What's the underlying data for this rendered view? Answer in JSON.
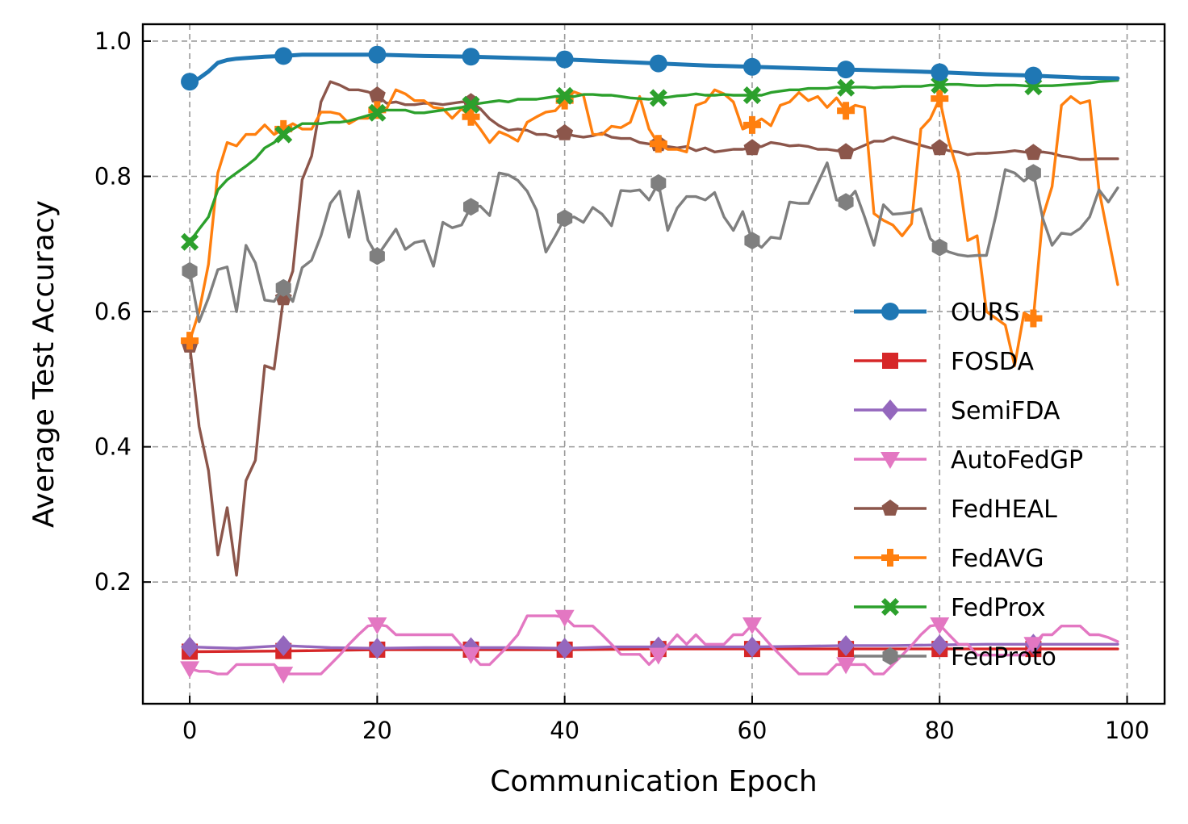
{
  "chart_data": {
    "type": "line",
    "title": "",
    "xlabel": "Communication Epoch",
    "ylabel": "Average Test Accuracy",
    "xlim": [
      -5,
      104
    ],
    "ylim": [
      0.02,
      1.025
    ],
    "xticks": [
      0,
      20,
      40,
      60,
      80,
      100
    ],
    "yticks": [
      0.2,
      0.4,
      0.6,
      0.8,
      1.0
    ],
    "xtick_labels": [
      "0",
      "20",
      "40",
      "60",
      "80",
      "100"
    ],
    "ytick_labels": [
      "0.2",
      "0.4",
      "0.6",
      "0.8",
      "1.0"
    ],
    "grid": true,
    "legend_position": "center-right",
    "series": [
      {
        "name": "OURS",
        "color": "#1f77b4",
        "marker": "circle",
        "x": [
          0,
          1,
          2,
          3,
          4,
          5,
          6,
          8,
          10,
          12,
          15,
          18,
          20,
          25,
          30,
          35,
          40,
          45,
          50,
          55,
          60,
          65,
          70,
          75,
          80,
          85,
          90,
          95,
          99
        ],
        "y": [
          0.94,
          0.945,
          0.955,
          0.968,
          0.972,
          0.974,
          0.975,
          0.977,
          0.978,
          0.98,
          0.98,
          0.98,
          0.98,
          0.978,
          0.977,
          0.975,
          0.973,
          0.97,
          0.967,
          0.964,
          0.962,
          0.96,
          0.958,
          0.956,
          0.954,
          0.951,
          0.949,
          0.946,
          0.945
        ]
      },
      {
        "name": "FOSDA",
        "color": "#d62728",
        "marker": "square",
        "x": [
          0,
          10,
          20,
          30,
          40,
          50,
          60,
          70,
          80,
          90,
          99
        ],
        "y": [
          0.097,
          0.098,
          0.1,
          0.1,
          0.1,
          0.101,
          0.101,
          0.101,
          0.101,
          0.101,
          0.101
        ]
      },
      {
        "name": "SemiFDA",
        "color": "#9467bd",
        "marker": "diamond",
        "x": [
          0,
          5,
          10,
          15,
          20,
          25,
          30,
          35,
          40,
          45,
          50,
          55,
          60,
          65,
          70,
          75,
          80,
          85,
          90,
          95,
          99
        ],
        "y": [
          0.104,
          0.102,
          0.106,
          0.103,
          0.102,
          0.103,
          0.103,
          0.103,
          0.102,
          0.104,
          0.104,
          0.104,
          0.104,
          0.105,
          0.106,
          0.106,
          0.107,
          0.108,
          0.108,
          0.108,
          0.108
        ]
      },
      {
        "name": "AutoFedGP",
        "color": "#e377c2",
        "marker": "triangle-down",
        "x": [
          0,
          1,
          2,
          3,
          4,
          5,
          6,
          7,
          8,
          9,
          10,
          11,
          12,
          13,
          14,
          15,
          16,
          17,
          18,
          19,
          20,
          21,
          22,
          23,
          24,
          25,
          26,
          27,
          28,
          29,
          30,
          31,
          32,
          33,
          34,
          35,
          36,
          37,
          38,
          39,
          40,
          41,
          42,
          43,
          44,
          45,
          46,
          47,
          48,
          49,
          50,
          51,
          52,
          53,
          54,
          55,
          56,
          57,
          58,
          59,
          60,
          61,
          62,
          63,
          64,
          65,
          66,
          67,
          68,
          69,
          70,
          71,
          72,
          73,
          74,
          75,
          76,
          77,
          78,
          79,
          80,
          81,
          82,
          83,
          84,
          85,
          86,
          87,
          88,
          89,
          90,
          91,
          92,
          93,
          94,
          95,
          96,
          97,
          98,
          99
        ],
        "y": [
          0.072,
          0.068,
          0.068,
          0.064,
          0.064,
          0.078,
          0.078,
          0.078,
          0.078,
          0.078,
          0.064,
          0.064,
          0.064,
          0.064,
          0.064,
          0.078,
          0.092,
          0.108,
          0.122,
          0.135,
          0.137,
          0.135,
          0.122,
          0.122,
          0.122,
          0.122,
          0.122,
          0.122,
          0.122,
          0.106,
          0.093,
          0.078,
          0.078,
          0.092,
          0.106,
          0.122,
          0.15,
          0.15,
          0.15,
          0.15,
          0.148,
          0.135,
          0.135,
          0.135,
          0.122,
          0.108,
          0.093,
          0.093,
          0.093,
          0.078,
          0.092,
          0.106,
          0.122,
          0.108,
          0.122,
          0.108,
          0.108,
          0.108,
          0.122,
          0.122,
          0.137,
          0.122,
          0.106,
          0.092,
          0.078,
          0.064,
          0.064,
          0.064,
          0.064,
          0.078,
          0.078,
          0.078,
          0.078,
          0.064,
          0.064,
          0.078,
          0.092,
          0.106,
          0.122,
          0.135,
          0.137,
          0.122,
          0.108,
          0.108,
          0.092,
          0.092,
          0.092,
          0.092,
          0.092,
          0.092,
          0.108,
          0.122,
          0.122,
          0.135,
          0.135,
          0.135,
          0.122,
          0.122,
          0.118,
          0.112
        ]
      },
      {
        "name": "FedHEAL",
        "color": "#8c564b",
        "marker": "pentagon",
        "x": [
          0,
          1,
          2,
          3,
          4,
          5,
          6,
          7,
          8,
          9,
          10,
          11,
          12,
          13,
          14,
          15,
          16,
          17,
          18,
          19,
          20,
          21,
          22,
          23,
          24,
          25,
          26,
          27,
          28,
          29,
          30,
          31,
          32,
          33,
          34,
          35,
          36,
          37,
          38,
          39,
          40,
          41,
          42,
          43,
          44,
          45,
          46,
          47,
          48,
          49,
          50,
          51,
          52,
          53,
          54,
          55,
          56,
          57,
          58,
          59,
          60,
          61,
          62,
          63,
          64,
          65,
          66,
          67,
          68,
          69,
          70,
          71,
          72,
          73,
          74,
          75,
          76,
          77,
          78,
          79,
          80,
          81,
          82,
          83,
          84,
          85,
          86,
          87,
          88,
          89,
          90,
          91,
          92,
          93,
          94,
          95,
          96,
          97,
          98,
          99
        ],
        "y": [
          0.55,
          0.43,
          0.365,
          0.24,
          0.31,
          0.21,
          0.35,
          0.38,
          0.52,
          0.515,
          0.62,
          0.66,
          0.795,
          0.83,
          0.91,
          0.94,
          0.935,
          0.928,
          0.928,
          0.925,
          0.92,
          0.908,
          0.91,
          0.906,
          0.906,
          0.908,
          0.908,
          0.906,
          0.908,
          0.91,
          0.91,
          0.9,
          0.885,
          0.875,
          0.868,
          0.87,
          0.868,
          0.862,
          0.862,
          0.858,
          0.864,
          0.86,
          0.858,
          0.86,
          0.864,
          0.858,
          0.856,
          0.856,
          0.85,
          0.848,
          0.848,
          0.844,
          0.842,
          0.844,
          0.838,
          0.842,
          0.836,
          0.838,
          0.84,
          0.84,
          0.842,
          0.844,
          0.85,
          0.848,
          0.845,
          0.846,
          0.844,
          0.84,
          0.84,
          0.838,
          0.836,
          0.84,
          0.846,
          0.852,
          0.852,
          0.858,
          0.854,
          0.85,
          0.846,
          0.842,
          0.842,
          0.838,
          0.836,
          0.832,
          0.834,
          0.834,
          0.835,
          0.836,
          0.838,
          0.836,
          0.835,
          0.836,
          0.834,
          0.83,
          0.828,
          0.825,
          0.825,
          0.826,
          0.826,
          0.826
        ]
      },
      {
        "name": "FedAVG",
        "color": "#ff7f0e",
        "marker": "plus",
        "x": [
          0,
          1,
          2,
          3,
          4,
          5,
          6,
          7,
          8,
          9,
          10,
          11,
          12,
          13,
          14,
          15,
          16,
          17,
          18,
          19,
          20,
          21,
          22,
          23,
          24,
          25,
          26,
          27,
          28,
          29,
          30,
          31,
          32,
          33,
          34,
          35,
          36,
          37,
          38,
          39,
          40,
          41,
          42,
          43,
          44,
          45,
          46,
          47,
          48,
          49,
          50,
          51,
          52,
          53,
          54,
          55,
          56,
          57,
          58,
          59,
          60,
          61,
          62,
          63,
          64,
          65,
          66,
          67,
          68,
          69,
          70,
          71,
          72,
          73,
          74,
          75,
          76,
          77,
          78,
          79,
          80,
          81,
          82,
          83,
          84,
          85,
          86,
          87,
          88,
          89,
          90,
          91,
          92,
          93,
          94,
          95,
          96,
          97,
          98,
          99
        ],
        "y": [
          0.557,
          0.6,
          0.67,
          0.805,
          0.85,
          0.845,
          0.862,
          0.862,
          0.876,
          0.862,
          0.87,
          0.878,
          0.87,
          0.87,
          0.895,
          0.895,
          0.892,
          0.878,
          0.886,
          0.886,
          0.898,
          0.9,
          0.928,
          0.922,
          0.912,
          0.912,
          0.902,
          0.9,
          0.886,
          0.9,
          0.888,
          0.87,
          0.85,
          0.866,
          0.86,
          0.852,
          0.88,
          0.888,
          0.895,
          0.897,
          0.912,
          0.925,
          0.92,
          0.862,
          0.862,
          0.874,
          0.872,
          0.88,
          0.918,
          0.87,
          0.848,
          0.84,
          0.84,
          0.836,
          0.905,
          0.91,
          0.928,
          0.922,
          0.91,
          0.87,
          0.876,
          0.885,
          0.875,
          0.905,
          0.91,
          0.924,
          0.912,
          0.918,
          0.902,
          0.916,
          0.897,
          0.905,
          0.902,
          0.745,
          0.735,
          0.728,
          0.712,
          0.73,
          0.87,
          0.885,
          0.915,
          0.85,
          0.805,
          0.705,
          0.712,
          0.6,
          0.59,
          0.58,
          0.52,
          0.598,
          0.59,
          0.74,
          0.785,
          0.905,
          0.918,
          0.908,
          0.912,
          0.78,
          0.71,
          0.64
        ]
      },
      {
        "name": "FedProx",
        "color": "#2ca02c",
        "marker": "x",
        "x": [
          0,
          1,
          2,
          3,
          4,
          5,
          6,
          7,
          8,
          9,
          10,
          11,
          12,
          13,
          14,
          15,
          16,
          17,
          18,
          19,
          20,
          21,
          22,
          23,
          24,
          25,
          26,
          27,
          28,
          29,
          30,
          31,
          32,
          33,
          34,
          35,
          36,
          37,
          38,
          39,
          40,
          41,
          42,
          43,
          44,
          45,
          46,
          47,
          48,
          49,
          50,
          51,
          52,
          53,
          54,
          55,
          56,
          57,
          58,
          59,
          60,
          61,
          62,
          63,
          64,
          65,
          66,
          67,
          68,
          69,
          70,
          71,
          72,
          73,
          74,
          75,
          76,
          77,
          78,
          79,
          80,
          81,
          82,
          83,
          84,
          85,
          86,
          87,
          88,
          89,
          90,
          91,
          92,
          93,
          94,
          95,
          96,
          97,
          98,
          99
        ],
        "y": [
          0.703,
          0.722,
          0.74,
          0.78,
          0.795,
          0.805,
          0.815,
          0.826,
          0.842,
          0.85,
          0.862,
          0.87,
          0.878,
          0.878,
          0.878,
          0.88,
          0.88,
          0.882,
          0.886,
          0.89,
          0.894,
          0.898,
          0.898,
          0.898,
          0.894,
          0.894,
          0.896,
          0.898,
          0.9,
          0.902,
          0.906,
          0.908,
          0.91,
          0.912,
          0.91,
          0.914,
          0.914,
          0.914,
          0.916,
          0.918,
          0.919,
          0.918,
          0.921,
          0.921,
          0.92,
          0.92,
          0.918,
          0.916,
          0.915,
          0.914,
          0.916,
          0.917,
          0.919,
          0.92,
          0.922,
          0.92,
          0.92,
          0.921,
          0.92,
          0.92,
          0.92,
          0.92,
          0.924,
          0.926,
          0.928,
          0.928,
          0.93,
          0.93,
          0.93,
          0.932,
          0.931,
          0.932,
          0.932,
          0.931,
          0.932,
          0.932,
          0.933,
          0.933,
          0.933,
          0.935,
          0.935,
          0.936,
          0.936,
          0.935,
          0.934,
          0.934,
          0.935,
          0.935,
          0.935,
          0.934,
          0.933,
          0.934,
          0.934,
          0.935,
          0.936,
          0.937,
          0.938,
          0.94,
          0.941,
          0.942
        ]
      },
      {
        "name": "FedProto",
        "color": "#7f7f7f",
        "marker": "hexagon",
        "x": [
          0,
          1,
          2,
          3,
          4,
          5,
          6,
          7,
          8,
          9,
          10,
          11,
          12,
          13,
          14,
          15,
          16,
          17,
          18,
          19,
          20,
          21,
          22,
          23,
          24,
          25,
          26,
          27,
          28,
          29,
          30,
          31,
          32,
          33,
          34,
          35,
          36,
          37,
          38,
          39,
          40,
          41,
          42,
          43,
          44,
          45,
          46,
          47,
          48,
          49,
          50,
          51,
          52,
          53,
          54,
          55,
          56,
          57,
          58,
          59,
          60,
          61,
          62,
          63,
          64,
          65,
          66,
          67,
          68,
          69,
          70,
          71,
          72,
          73,
          74,
          75,
          76,
          77,
          78,
          79,
          80,
          81,
          82,
          83,
          84,
          85,
          86,
          87,
          88,
          89,
          90,
          91,
          92,
          93,
          94,
          95,
          96,
          97,
          98,
          99
        ],
        "y": [
          0.66,
          0.585,
          0.62,
          0.662,
          0.666,
          0.6,
          0.698,
          0.672,
          0.617,
          0.615,
          0.635,
          0.615,
          0.665,
          0.676,
          0.712,
          0.76,
          0.778,
          0.71,
          0.778,
          0.706,
          0.682,
          0.702,
          0.722,
          0.692,
          0.702,
          0.705,
          0.667,
          0.732,
          0.724,
          0.728,
          0.755,
          0.756,
          0.742,
          0.805,
          0.802,
          0.794,
          0.778,
          0.75,
          0.688,
          0.712,
          0.738,
          0.74,
          0.732,
          0.754,
          0.744,
          0.727,
          0.779,
          0.778,
          0.78,
          0.765,
          0.79,
          0.72,
          0.753,
          0.77,
          0.77,
          0.765,
          0.776,
          0.74,
          0.72,
          0.748,
          0.705,
          0.695,
          0.71,
          0.708,
          0.762,
          0.76,
          0.76,
          0.79,
          0.82,
          0.765,
          0.762,
          0.778,
          0.74,
          0.698,
          0.758,
          0.744,
          0.745,
          0.747,
          0.752,
          0.708,
          0.695,
          0.688,
          0.684,
          0.682,
          0.683,
          0.683,
          0.742,
          0.81,
          0.805,
          0.793,
          0.805,
          0.738,
          0.698,
          0.716,
          0.714,
          0.723,
          0.74,
          0.78,
          0.762,
          0.783
        ]
      }
    ]
  }
}
